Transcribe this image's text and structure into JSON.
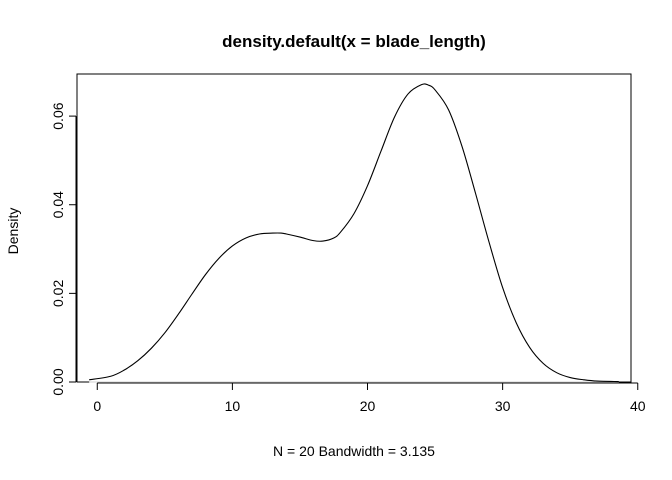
{
  "chart_data": {
    "type": "line",
    "title": "density.default(x = blade_length)",
    "xlabel": "N = 20   Bandwidth = 3.135",
    "ylabel": "Density",
    "xlim": [
      -1.5,
      39.5
    ],
    "ylim": [
      0.0,
      0.0695
    ],
    "x_ticks": [
      0,
      10,
      20,
      30,
      40
    ],
    "x_tick_labels": [
      "0",
      "10",
      "20",
      "30",
      "40"
    ],
    "y_ticks": [
      0.0,
      0.02,
      0.04,
      0.06
    ],
    "y_tick_labels": [
      "0.00",
      "0.02",
      "0.04",
      "0.06"
    ],
    "grid": false,
    "zero_line": true,
    "series": [
      {
        "x": [
          -0.6,
          1,
          2,
          3,
          4,
          5,
          6,
          7,
          8,
          9,
          10,
          11,
          12,
          13,
          13.6,
          14,
          15,
          16,
          16.7,
          17.5,
          18,
          19,
          20,
          21,
          22,
          23,
          24,
          24.5,
          25,
          26,
          27,
          28,
          29,
          30,
          31,
          32,
          33,
          34,
          35,
          36,
          37,
          38.6
        ],
        "y": [
          0.0005,
          0.0013,
          0.0027,
          0.0048,
          0.0076,
          0.0111,
          0.0153,
          0.0198,
          0.0242,
          0.0279,
          0.0307,
          0.0325,
          0.0334,
          0.0336,
          0.0336,
          0.0334,
          0.0327,
          0.0319,
          0.0318,
          0.0325,
          0.0338,
          0.038,
          0.0443,
          0.0521,
          0.0598,
          0.065,
          0.0671,
          0.067,
          0.0659,
          0.0614,
          0.0531,
          0.0425,
          0.0315,
          0.0213,
          0.0134,
          0.0078,
          0.0042,
          0.0021,
          0.001,
          0.0005,
          0.0002,
          0.0001
        ]
      }
    ],
    "line_color": "#000000",
    "zero_line_color": "#d0d0d0"
  }
}
